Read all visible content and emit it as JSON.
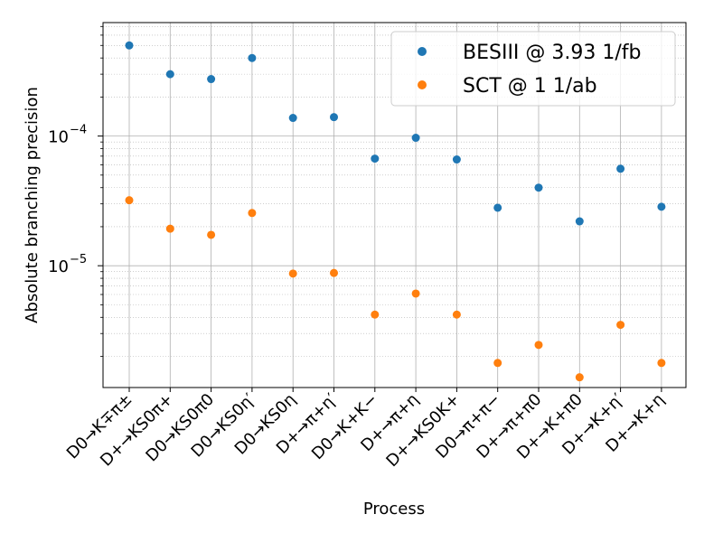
{
  "chart_data": {
    "type": "scatter",
    "title": "",
    "xlabel": "Process",
    "ylabel": "Absolute branching precision",
    "yscale": "log",
    "ylim": [
      1.15e-06,
      0.00075
    ],
    "grid": "both (major and minor on y)",
    "legend_position": "upper-right",
    "categories": [
      "D0→K∓π±",
      "D+→KS0π+",
      "D0→KS0π0",
      "D0→KS0η′",
      "D0→KS0η",
      "D+→π+η′",
      "D0→K+K−",
      "D+→π+η",
      "D+→KS0K+",
      "D0→π+π−",
      "D+→π+π0",
      "D+→K+π0",
      "D+→K+η′",
      "D+→K+η"
    ],
    "yticks": [
      {
        "value": 1e-05,
        "label": "10",
        "exp": "−5"
      },
      {
        "value": 0.0001,
        "label": "10",
        "exp": "−4"
      }
    ],
    "series": [
      {
        "name": "BESIII @ 3.93 1/fb",
        "color": "#1f77b4",
        "values": [
          0.0005,
          0.0003,
          0.000275,
          0.0004,
          0.000138,
          0.00014,
          6.7e-05,
          9.7e-05,
          6.6e-05,
          2.8e-05,
          4e-05,
          2.2e-05,
          5.6e-05,
          2.85e-05
        ]
      },
      {
        "name": "SCT @ 1 1/ab",
        "color": "#ff7f0e",
        "values": [
          3.2e-05,
          1.93e-05,
          1.73e-05,
          2.55e-05,
          8.7e-06,
          8.8e-06,
          4.2e-06,
          6.1e-06,
          4.2e-06,
          1.78e-06,
          2.45e-06,
          1.38e-06,
          3.5e-06,
          1.78e-06
        ]
      }
    ]
  }
}
